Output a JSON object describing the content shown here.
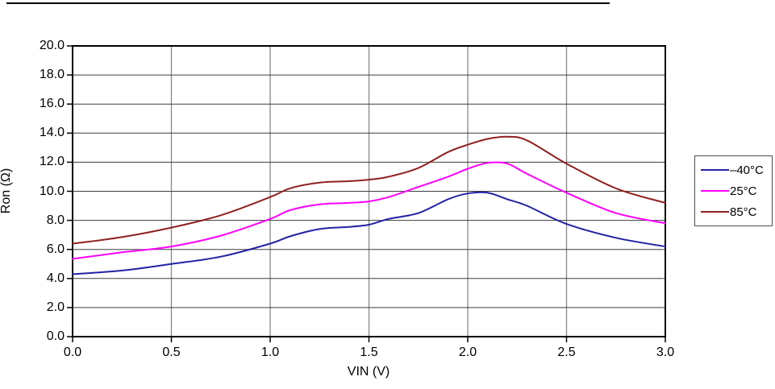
{
  "figure": {
    "top_rule": true,
    "background": "#ffffff"
  },
  "chart_data": {
    "type": "line",
    "title": "",
    "xlabel": "VIN (V)",
    "ylabel": "Ron (Ω)",
    "xlim": [
      0.0,
      3.0
    ],
    "ylim": [
      0.0,
      20.0
    ],
    "grid": true,
    "legend_position": "right-outside",
    "x_ticks": [
      "0.0",
      "0.5",
      "1.0",
      "1.5",
      "2.0",
      "2.5",
      "3.0"
    ],
    "x_tick_values": [
      0,
      0.5,
      1.0,
      1.5,
      2.0,
      2.5,
      3.0
    ],
    "y_ticks": [
      "0.0",
      "2.0",
      "4.0",
      "6.0",
      "8.0",
      "10.0",
      "12.0",
      "14.0",
      "16.0",
      "18.0",
      "20.0"
    ],
    "y_tick_values": [
      0,
      2,
      4,
      6,
      8,
      10,
      12,
      14,
      16,
      18,
      20
    ],
    "x": [
      0,
      0.25,
      0.5,
      0.75,
      1.0,
      1.1,
      1.25,
      1.4,
      1.5,
      1.6,
      1.75,
      1.9,
      2.0,
      2.1,
      2.2,
      2.3,
      2.5,
      2.75,
      3.0
    ],
    "series": [
      {
        "name": "–40°C",
        "color": "#2222a4",
        "values": [
          4.3,
          4.55,
          5.0,
          5.5,
          6.4,
          6.9,
          7.4,
          7.55,
          7.7,
          8.1,
          8.5,
          9.45,
          9.85,
          9.9,
          9.45,
          9.0,
          7.75,
          6.8,
          6.2
        ]
      },
      {
        "name": "25°C",
        "color": "#ff00ff",
        "values": [
          5.35,
          5.8,
          6.2,
          6.95,
          8.1,
          8.7,
          9.1,
          9.2,
          9.3,
          9.6,
          10.3,
          11.0,
          11.55,
          11.95,
          11.9,
          11.2,
          9.9,
          8.5,
          7.8
        ]
      },
      {
        "name": "85°C",
        "color": "#8f2020",
        "values": [
          6.4,
          6.85,
          7.5,
          8.35,
          9.6,
          10.2,
          10.6,
          10.7,
          10.8,
          11.0,
          11.6,
          12.7,
          13.2,
          13.6,
          13.75,
          13.5,
          11.9,
          10.2,
          9.2
        ]
      }
    ],
    "style": {
      "frame_color": "#000000",
      "h_grid_color": "#3d3d3d",
      "v_grid_color": "#888888",
      "line_width": 2
    }
  }
}
